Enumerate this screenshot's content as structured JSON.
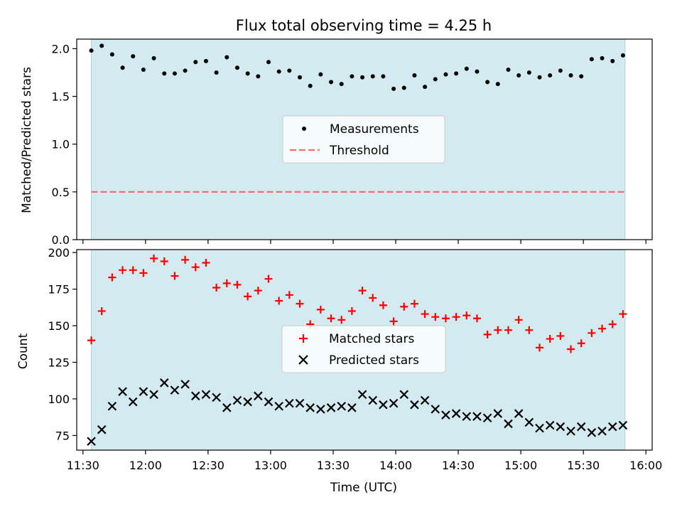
{
  "chart_data": [
    {
      "type": "scatter",
      "title": "Flux total observing time = 4.25 h",
      "xlabel": "",
      "ylabel": "Matched/Predicted stars",
      "x_unit": "time_UTC",
      "xlim": [
        "11:27",
        "16:03"
      ],
      "ylim": [
        0,
        2.1
      ],
      "y_ticks": [
        0.0,
        0.5,
        1.0,
        1.5,
        2.0
      ],
      "y_tick_labels": [
        "0.0",
        "0.5",
        "1.0",
        "1.5",
        "2.0"
      ],
      "shaded_span": [
        "11:34",
        "15:50"
      ],
      "shade_color": "#d3eaf0",
      "legend_position": "center",
      "series": [
        {
          "name": "Measurements",
          "marker": "dot",
          "color": "#000000",
          "x": [
            "11:34",
            "11:39",
            "11:44",
            "11:49",
            "11:54",
            "11:59",
            "12:04",
            "12:09",
            "12:14",
            "12:19",
            "12:24",
            "12:29",
            "12:34",
            "12:39",
            "12:44",
            "12:49",
            "12:54",
            "12:59",
            "13:04",
            "13:09",
            "13:14",
            "13:19",
            "13:24",
            "13:29",
            "13:34",
            "13:39",
            "13:44",
            "13:49",
            "13:54",
            "13:59",
            "14:04",
            "14:09",
            "14:14",
            "14:19",
            "14:24",
            "14:29",
            "14:34",
            "14:39",
            "14:44",
            "14:49",
            "14:54",
            "14:59",
            "15:04",
            "15:09",
            "15:14",
            "15:19",
            "15:24",
            "15:29",
            "15:34",
            "15:39",
            "15:44",
            "15:49"
          ],
          "y": [
            1.98,
            2.03,
            1.94,
            1.8,
            1.92,
            1.78,
            1.9,
            1.74,
            1.74,
            1.77,
            1.86,
            1.87,
            1.75,
            1.91,
            1.8,
            1.74,
            1.71,
            1.86,
            1.76,
            1.77,
            1.7,
            1.61,
            1.73,
            1.65,
            1.63,
            1.71,
            1.7,
            1.71,
            1.71,
            1.58,
            1.59,
            1.72,
            1.6,
            1.68,
            1.73,
            1.74,
            1.79,
            1.76,
            1.65,
            1.63,
            1.78,
            1.72,
            1.75,
            1.7,
            1.72,
            1.77,
            1.72,
            1.71,
            1.89,
            1.9,
            1.87,
            1.93
          ]
        },
        {
          "name": "Threshold",
          "type": "line",
          "style": "dashed",
          "color": "#f07070",
          "x": [
            "11:34",
            "15:50"
          ],
          "y": [
            0.5,
            0.5
          ]
        }
      ]
    },
    {
      "type": "scatter",
      "xlabel": "Time (UTC)",
      "ylabel": "Count",
      "x_unit": "time_UTC",
      "xlim": [
        "11:27",
        "16:03"
      ],
      "ylim": [
        65,
        202
      ],
      "y_ticks": [
        75,
        100,
        125,
        150,
        175,
        200
      ],
      "y_tick_labels": [
        "75",
        "100",
        "125",
        "150",
        "175",
        "200"
      ],
      "x_ticks": [
        "11:30",
        "12:00",
        "12:30",
        "13:00",
        "13:30",
        "14:00",
        "14:30",
        "15:00",
        "15:30",
        "16:00"
      ],
      "x_tick_labels": [
        "11:30",
        "12:00",
        "12:30",
        "13:00",
        "13:30",
        "14:00",
        "14:30",
        "15:00",
        "15:30",
        "16:00"
      ],
      "shaded_span": [
        "11:34",
        "15:50"
      ],
      "shade_color": "#d3eaf0",
      "legend_position": "center",
      "series": [
        {
          "name": "Matched stars",
          "marker": "plus",
          "color": "#ff0000",
          "x": [
            "11:34",
            "11:39",
            "11:44",
            "11:49",
            "11:54",
            "11:59",
            "12:04",
            "12:09",
            "12:14",
            "12:19",
            "12:24",
            "12:29",
            "12:34",
            "12:39",
            "12:44",
            "12:49",
            "12:54",
            "12:59",
            "13:04",
            "13:09",
            "13:14",
            "13:19",
            "13:24",
            "13:29",
            "13:34",
            "13:39",
            "13:44",
            "13:49",
            "13:54",
            "13:59",
            "14:04",
            "14:09",
            "14:14",
            "14:19",
            "14:24",
            "14:29",
            "14:34",
            "14:39",
            "14:44",
            "14:49",
            "14:54",
            "14:59",
            "15:04",
            "15:09",
            "15:14",
            "15:19",
            "15:24",
            "15:29",
            "15:34",
            "15:39",
            "15:44",
            "15:49"
          ],
          "y": [
            140,
            160,
            183,
            188,
            188,
            186,
            196,
            194,
            184,
            195,
            190,
            193,
            176,
            179,
            178,
            170,
            174,
            182,
            167,
            171,
            165,
            151,
            161,
            155,
            154,
            160,
            174,
            169,
            164,
            153,
            163,
            165,
            158,
            156,
            155,
            156,
            157,
            155,
            144,
            147,
            147,
            154,
            147,
            135,
            141,
            143,
            134,
            138,
            145,
            148,
            151,
            158
          ]
        },
        {
          "name": "Predicted stars",
          "marker": "x",
          "color": "#000000",
          "x": [
            "11:34",
            "11:39",
            "11:44",
            "11:49",
            "11:54",
            "11:59",
            "12:04",
            "12:09",
            "12:14",
            "12:19",
            "12:24",
            "12:29",
            "12:34",
            "12:39",
            "12:44",
            "12:49",
            "12:54",
            "12:59",
            "13:04",
            "13:09",
            "13:14",
            "13:19",
            "13:24",
            "13:29",
            "13:34",
            "13:39",
            "13:44",
            "13:49",
            "13:54",
            "13:59",
            "14:04",
            "14:09",
            "14:14",
            "14:19",
            "14:24",
            "14:29",
            "14:34",
            "14:39",
            "14:44",
            "14:49",
            "14:54",
            "14:59",
            "15:04",
            "15:09",
            "15:14",
            "15:19",
            "15:24",
            "15:29",
            "15:34",
            "15:39",
            "15:44",
            "15:49"
          ],
          "y": [
            71,
            79,
            95,
            105,
            98,
            105,
            103,
            111,
            106,
            110,
            102,
            103,
            101,
            94,
            99,
            98,
            102,
            98,
            95,
            97,
            97,
            94,
            93,
            94,
            95,
            94,
            103,
            99,
            96,
            97,
            103,
            96,
            99,
            93,
            89,
            90,
            88,
            88,
            87,
            90,
            83,
            90,
            84,
            80,
            82,
            81,
            78,
            81,
            77,
            78,
            81,
            82
          ]
        }
      ]
    }
  ]
}
